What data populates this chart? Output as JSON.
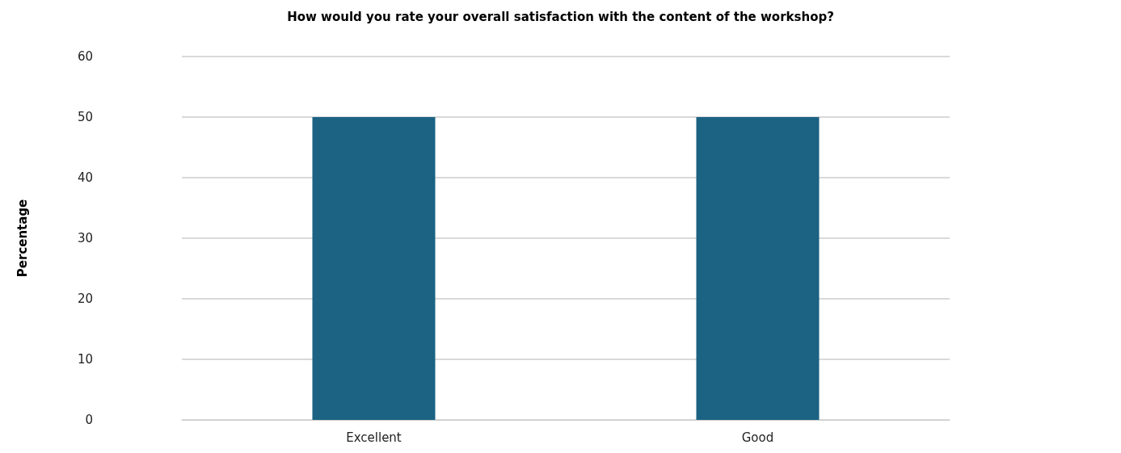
{
  "chart_data": {
    "type": "bar",
    "title": "How would you rate your overall satisfaction with the content of the workshop?",
    "ylabel": "Percentage",
    "categories": [
      "Excellent",
      "Good"
    ],
    "values": [
      50,
      50
    ],
    "color": "#1b6283",
    "ylim": [
      0,
      60
    ],
    "yticks": [
      0,
      10,
      20,
      30,
      40,
      50,
      60
    ],
    "grid": "y"
  }
}
